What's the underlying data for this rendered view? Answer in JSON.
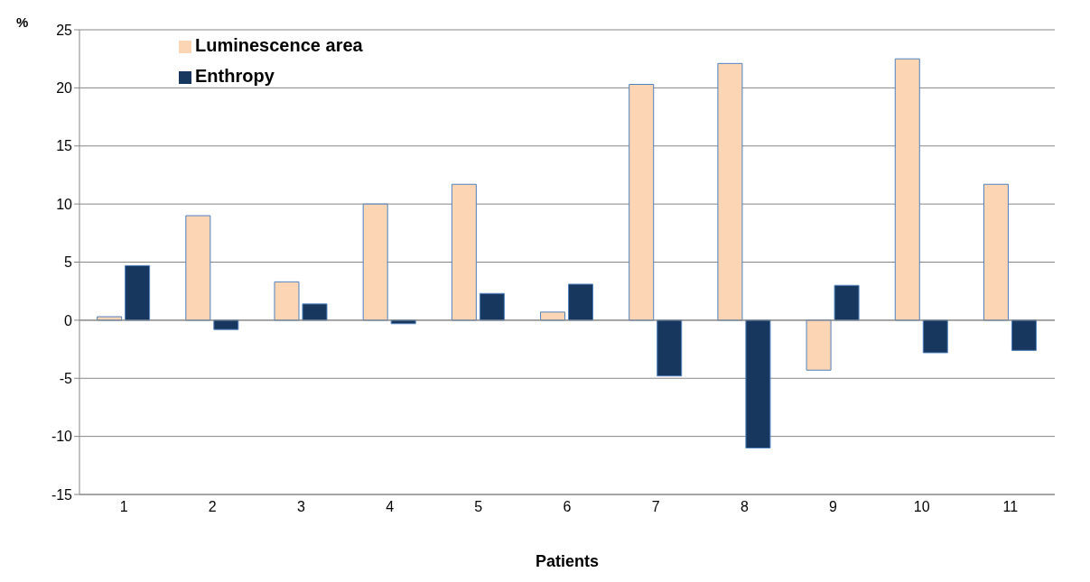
{
  "chart_data": {
    "type": "bar",
    "categories": [
      "1",
      "2",
      "3",
      "4",
      "5",
      "6",
      "7",
      "8",
      "9",
      "10",
      "11"
    ],
    "series": [
      {
        "name": "Luminescence area",
        "color": "#fcd5b4",
        "values": [
          0.3,
          9,
          3.3,
          10,
          11.7,
          0.7,
          20.3,
          22.1,
          -4.3,
          22.5,
          11.7
        ]
      },
      {
        "name": "Enthropy",
        "color": "#17375e",
        "values": [
          4.7,
          -0.8,
          1.4,
          -0.3,
          2.3,
          3.1,
          -4.8,
          -11,
          3,
          -2.8,
          -2.6
        ]
      }
    ],
    "ylabel": "%",
    "xlabel": "Patients",
    "ylim": [
      -15,
      25
    ],
    "yticks": [
      -15,
      -10,
      -5,
      0,
      5,
      10,
      15,
      20,
      25
    ],
    "grid": "y",
    "legend": "top left"
  }
}
